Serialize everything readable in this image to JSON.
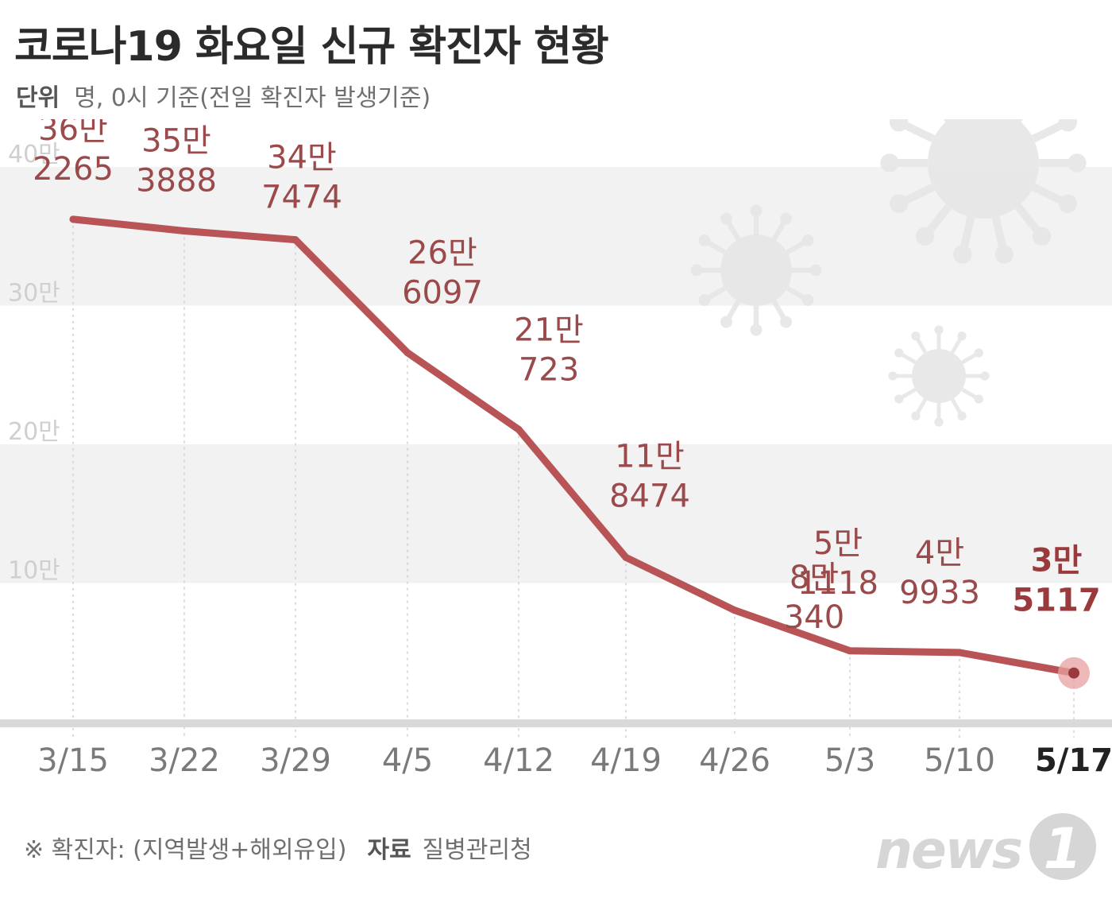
{
  "header": {
    "title": "코로나19 화요일 신규 확진자 현황",
    "unit_label": "단위",
    "unit_text": "명, 0시 기준(전일 확진자 발생기준)"
  },
  "footer": {
    "note": "※ 확진자: (지역발생+해외유입)",
    "source_label": "자료",
    "source_text": "질병관리청"
  },
  "logo": {
    "text": "news1"
  },
  "colors": {
    "line": "#b85456",
    "label": "#9b4a4c",
    "band": "#f2f2f2",
    "axis": "#d9d9d9",
    "highlight_dot": "#e8a0a2"
  },
  "icons": [
    "virus-icon",
    "virus-icon",
    "virus-icon"
  ],
  "chart_data": {
    "type": "line",
    "title": "코로나19 화요일 신규 확진자 현황",
    "xlabel": "",
    "ylabel": "",
    "ylim": [
      0,
      400000
    ],
    "yticks": [
      {
        "value": 100000,
        "label": "10만"
      },
      {
        "value": 200000,
        "label": "20만"
      },
      {
        "value": 300000,
        "label": "30만"
      },
      {
        "value": 400000,
        "label": "40만"
      }
    ],
    "categories": [
      "3/15",
      "3/22",
      "3/29",
      "4/5",
      "4/12",
      "4/19",
      "4/26",
      "5/3",
      "5/10",
      "5/17"
    ],
    "values": [
      362265,
      353888,
      347474,
      266097,
      210723,
      118474,
      80340,
      51118,
      49933,
      35117
    ],
    "data_labels": [
      [
        "36만",
        "2265"
      ],
      [
        "35만",
        "3888"
      ],
      [
        "34만",
        "7474"
      ],
      [
        "26만",
        "6097"
      ],
      [
        "21만",
        "723"
      ],
      [
        "11만",
        "8474"
      ],
      [
        "8만",
        "340"
      ],
      [
        "5만",
        "1118"
      ],
      [
        "4만",
        "9933"
      ],
      [
        "3만",
        "5117"
      ]
    ],
    "highlight_index": 9,
    "grid": "alternating bands"
  }
}
